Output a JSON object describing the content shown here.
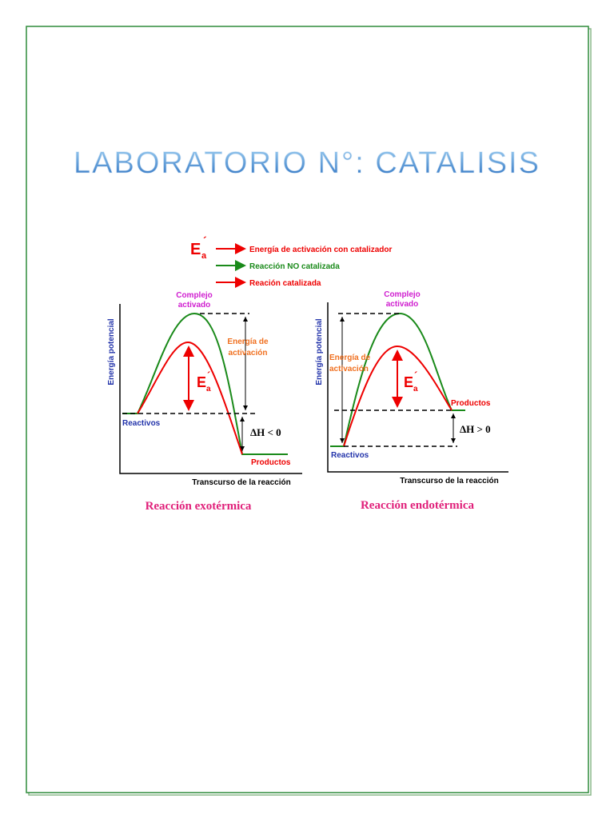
{
  "title": "LABORATORIO N°: CATALISIS",
  "legend": {
    "symbol": {
      "letter": "E",
      "prime": "´",
      "sub": "a"
    },
    "items": [
      "Energía de activación con catalizador",
      "Reacción NO catalizada",
      "Reación catalizada"
    ]
  },
  "diagrams": [
    {
      "y_axis": "Energía potencial",
      "x_axis": "Transcurso de la reacción",
      "peak_label": [
        "Complejo",
        "activado"
      ],
      "activation_label": [
        "Energía de",
        "activación"
      ],
      "reactants": "Reactivos",
      "products": "Productos",
      "delta_h": "ΔH < 0",
      "symbol": {
        "letter": "E",
        "prime": "´",
        "sub": "a"
      },
      "caption": "Reacción exotérmica"
    },
    {
      "y_axis": "Energía potencial",
      "x_axis": "Transcurso de la reacción",
      "peak_label": [
        "Complejo",
        "activado"
      ],
      "activation_label": [
        "Energía de",
        "activación"
      ],
      "reactants": "Reactivos",
      "products": "Productos",
      "delta_h": "ΔH > 0",
      "symbol": {
        "letter": "E",
        "prime": "´",
        "sub": "a"
      },
      "caption": "Reacción endotérmica"
    }
  ]
}
